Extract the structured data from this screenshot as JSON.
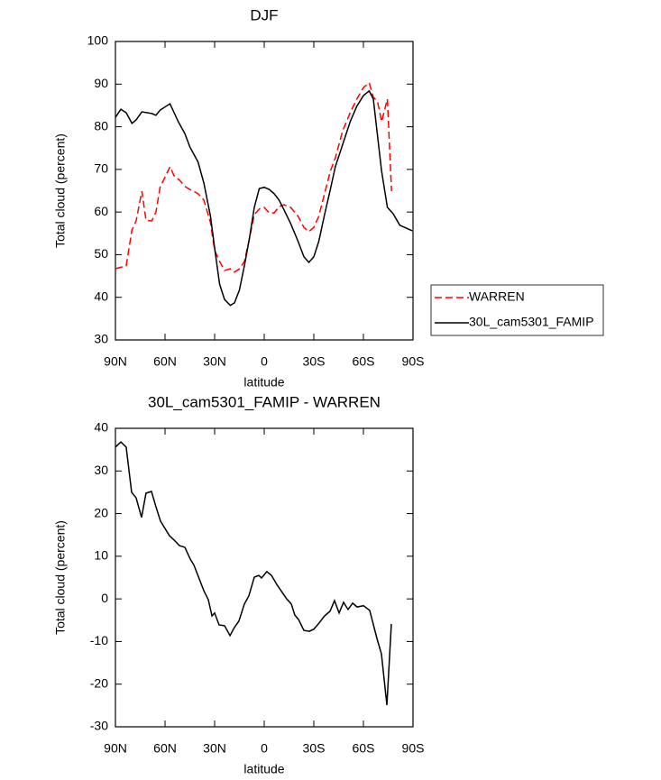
{
  "chart_data": [
    {
      "type": "line",
      "title": "DJF",
      "x_label": "latitude",
      "y_label": "Total cloud (percent)",
      "xlim": [
        90,
        -90
      ],
      "xticks": [
        {
          "value": 90,
          "label": "90N"
        },
        {
          "value": 60,
          "label": "60N"
        },
        {
          "value": 30,
          "label": "30N"
        },
        0,
        {
          "value": -30,
          "label": "30S"
        },
        {
          "value": -60,
          "label": "60S"
        },
        {
          "value": -90,
          "label": "90S"
        }
      ],
      "ylim": [
        30,
        100
      ],
      "yticks": [
        30,
        40,
        50,
        60,
        70,
        80,
        90,
        100
      ],
      "legend": "right",
      "series": [
        {
          "name": "WARREN",
          "color": "#ff0000",
          "dash": true,
          "x": [
            90,
            83.5,
            80,
            77.5,
            74,
            71.5,
            68,
            65.5,
            63,
            57,
            54.5,
            51,
            48,
            45,
            40,
            36.5,
            32.5,
            30,
            27,
            24,
            20.5,
            18,
            15,
            12,
            9,
            6,
            3,
            0,
            -3,
            -6,
            -9,
            -12,
            -16,
            -20.5,
            -24,
            -27,
            -30,
            -33,
            -36.5,
            -40,
            -43,
            -47.5,
            -52,
            -56,
            -60,
            -63.5,
            -66,
            -68.5,
            -71,
            -74.5,
            -77
          ],
          "values": [
            46.7,
            47.4,
            55.8,
            57.9,
            64.9,
            58.1,
            57.9,
            60,
            65.8,
            70.6,
            68.5,
            67.4,
            66,
            65.3,
            64.3,
            62.8,
            57.5,
            51,
            48.4,
            46.3,
            46.7,
            45.9,
            46.7,
            48.4,
            53.7,
            59.4,
            60.7,
            61.1,
            59.8,
            59.8,
            61.3,
            61.7,
            61.1,
            59,
            56.4,
            55.4,
            56.4,
            59,
            64.3,
            69.6,
            72.7,
            79.1,
            83.3,
            86.5,
            89.2,
            90.3,
            86.9,
            86,
            81.2,
            86.5,
            64.9
          ]
        },
        {
          "name": "30L_cam5301_FAMIP",
          "color": "#000000",
          "dash": false,
          "x": [
            90,
            86.7,
            83.5,
            80,
            77.5,
            74,
            68,
            65.5,
            63,
            57,
            52,
            48,
            45,
            40,
            36.5,
            32.5,
            30,
            27,
            24,
            20.5,
            18,
            15,
            12,
            9,
            6,
            3,
            0,
            -3,
            -6,
            -9,
            -12,
            -16,
            -20.5,
            -24,
            -27,
            -30,
            -33,
            -36.5,
            -40,
            -43,
            -47.5,
            -52,
            -56,
            -60,
            -63.5,
            -66,
            -68.5,
            -71,
            -74.5,
            -78,
            -82,
            -86,
            -89.5
          ],
          "values": [
            82.2,
            84.1,
            83.3,
            80.8,
            81.6,
            83.5,
            83.1,
            82.7,
            83.9,
            85.4,
            81.2,
            78.4,
            75.3,
            71.7,
            66.8,
            59,
            51.6,
            43.1,
            39.5,
            38.1,
            38.7,
            41.7,
            47.4,
            53.7,
            61.1,
            65.5,
            65.8,
            65.3,
            64.3,
            62.8,
            60.5,
            57.3,
            53.1,
            49.5,
            48.2,
            49.5,
            53.1,
            59.4,
            65.3,
            70.6,
            75.9,
            81.2,
            84.8,
            87.3,
            88.4,
            86.5,
            78,
            69.6,
            61.1,
            59.6,
            56.9,
            56.2,
            55.6
          ]
        }
      ]
    },
    {
      "type": "line",
      "title": "30L_cam5301_FAMIP - WARREN",
      "x_label": "latitude",
      "y_label": "Total cloud (percent)",
      "xlim": [
        90,
        -90
      ],
      "xticks": [
        {
          "value": 90,
          "label": "90N"
        },
        {
          "value": 60,
          "label": "60N"
        },
        {
          "value": 30,
          "label": "30N"
        },
        0,
        {
          "value": -30,
          "label": "30S"
        },
        {
          "value": -60,
          "label": "60S"
        },
        {
          "value": -90,
          "label": "90S"
        }
      ],
      "ylim": [
        -30,
        40
      ],
      "yticks": [
        -30,
        -20,
        -10,
        0,
        10,
        20,
        30,
        40
      ],
      "series": [
        {
          "color": "#000000",
          "dash": false,
          "x": [
            90,
            86.7,
            83.5,
            80.2,
            77.5,
            74.2,
            71.5,
            68.2,
            65.5,
            62.7,
            57.3,
            54.5,
            51.3,
            48,
            44.7,
            42.5,
            40.4,
            36.5,
            33.8,
            31.6,
            30,
            27.3,
            24,
            20.7,
            18,
            15.3,
            12,
            9.3,
            6,
            3.3,
            1.6,
            -1.6,
            -4.4,
            -7.6,
            -10.9,
            -13.6,
            -16.4,
            -18.5,
            -20.7,
            -24,
            -27.3,
            -30,
            -32.7,
            -36.5,
            -39.8,
            -42.5,
            -45.3,
            -48,
            -50.7,
            -53.5,
            -56.2,
            -60,
            -63.8,
            -68.2,
            -70.9,
            -74.2,
            -76.9
          ],
          "values": [
            35.6,
            36.8,
            35.6,
            25,
            23.7,
            19.1,
            24.8,
            25.2,
            21.6,
            18.2,
            14.8,
            13.8,
            12.5,
            12.1,
            9.3,
            7.9,
            5.8,
            1.9,
            -0.2,
            -4,
            -3.3,
            -6.1,
            -6.3,
            -8.6,
            -6.7,
            -5.2,
            -1.2,
            0.7,
            5.1,
            5.5,
            4.9,
            6.4,
            5.5,
            3.4,
            1.5,
            0,
            -1.2,
            -3.8,
            -4.8,
            -7.4,
            -7.6,
            -7.1,
            -5.9,
            -4,
            -2.9,
            -0.4,
            -3.3,
            -0.8,
            -2.5,
            -1,
            -1.9,
            -1.6,
            -2.7,
            -9.3,
            -12.9,
            -24.9,
            -5.9
          ]
        }
      ]
    }
  ]
}
